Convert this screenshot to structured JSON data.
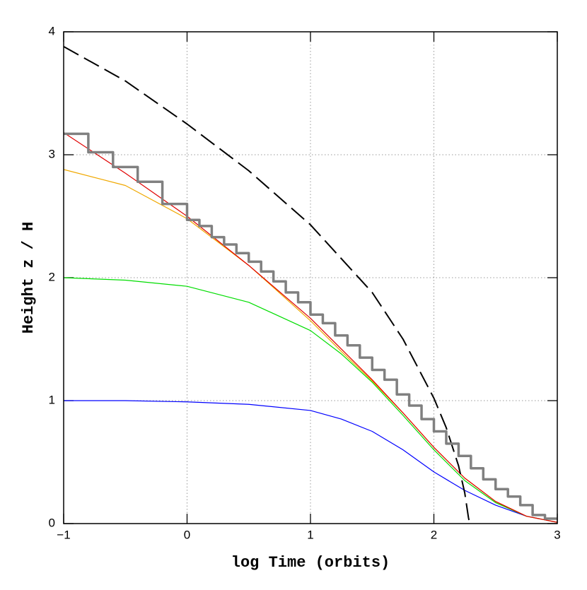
{
  "chart_data": {
    "type": "line",
    "xlabel": "log Time (orbits)",
    "ylabel": "Height z / H",
    "xlim": [
      -1,
      3
    ],
    "ylim": [
      0,
      4
    ],
    "xticks": [
      {
        "value": -1,
        "label": "−1"
      },
      0,
      1,
      2,
      3
    ],
    "yticks": [
      0,
      1,
      2,
      3,
      4
    ],
    "grid": true,
    "series": [
      {
        "color": "#0000ff",
        "style": "solid",
        "x": [
          -1,
          -0.5,
          0,
          0.5,
          1,
          1.25,
          1.5,
          1.75,
          2,
          2.25,
          2.5,
          2.75,
          3
        ],
        "values": [
          1.0,
          1.0,
          0.99,
          0.97,
          0.92,
          0.85,
          0.75,
          0.6,
          0.42,
          0.27,
          0.15,
          0.06,
          0.01
        ]
      },
      {
        "color": "#00dd00",
        "style": "solid",
        "x": [
          -1,
          -0.5,
          0,
          0.5,
          1,
          1.25,
          1.5,
          1.75,
          2,
          2.25,
          2.5,
          2.75,
          3
        ],
        "values": [
          2.0,
          1.98,
          1.93,
          1.8,
          1.57,
          1.38,
          1.15,
          0.88,
          0.6,
          0.35,
          0.17,
          0.06,
          0.01
        ]
      },
      {
        "color": "#f0a800",
        "style": "solid",
        "x": [
          -1,
          -0.5,
          0,
          0.5,
          1,
          1.25,
          1.5,
          1.75,
          2,
          2.25,
          2.5,
          2.75,
          3
        ],
        "values": [
          2.88,
          2.75,
          2.48,
          2.1,
          1.65,
          1.4,
          1.16,
          0.9,
          0.62,
          0.37,
          0.18,
          0.06,
          0.01
        ]
      },
      {
        "color": "#e00000",
        "style": "solid",
        "x": [
          -1,
          -0.5,
          0,
          0.5,
          1,
          1.25,
          1.5,
          1.75,
          2,
          2.25,
          2.5,
          2.75,
          3
        ],
        "values": [
          3.18,
          2.85,
          2.5,
          2.1,
          1.67,
          1.42,
          1.17,
          0.9,
          0.62,
          0.37,
          0.18,
          0.06,
          0.01
        ]
      },
      {
        "color": "#000000",
        "style": "dashed",
        "x": [
          -1,
          -0.5,
          0,
          0.5,
          1,
          1.5,
          1.75,
          2,
          2.1,
          2.2,
          2.25,
          2.28,
          2.29
        ],
        "values": [
          3.88,
          3.6,
          3.25,
          2.87,
          2.43,
          1.88,
          1.5,
          1.02,
          0.78,
          0.47,
          0.25,
          0.05,
          0
        ]
      },
      {
        "color": "#808080",
        "style": "step",
        "x": [
          -1,
          -0.8,
          -0.6,
          -0.4,
          -0.2,
          -0.1,
          0,
          0.1,
          0.2,
          0.3,
          0.4,
          0.5,
          0.6,
          0.7,
          0.8,
          0.9,
          1.0,
          1.1,
          1.2,
          1.3,
          1.4,
          1.5,
          1.6,
          1.7,
          1.8,
          1.9,
          2.0,
          2.1,
          2.2,
          2.3,
          2.4,
          2.5,
          2.6,
          2.7,
          2.8,
          2.9,
          3.0
        ],
        "values": [
          3.17,
          3.02,
          2.9,
          2.78,
          2.6,
          2.6,
          2.47,
          2.42,
          2.33,
          2.27,
          2.2,
          2.13,
          2.05,
          1.97,
          1.88,
          1.8,
          1.7,
          1.63,
          1.53,
          1.45,
          1.35,
          1.25,
          1.17,
          1.05,
          0.96,
          0.85,
          0.75,
          0.65,
          0.55,
          0.45,
          0.36,
          0.28,
          0.22,
          0.15,
          0.07,
          0.04,
          0.04
        ]
      }
    ]
  }
}
